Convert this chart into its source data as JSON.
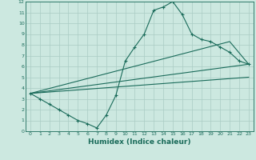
{
  "xlabel": "Humidex (Indice chaleur)",
  "bg_color": "#cce8e0",
  "grid_color": "#aaccC4",
  "line_color": "#1a6b5a",
  "xlim": [
    -0.5,
    23.5
  ],
  "ylim": [
    0,
    12
  ],
  "xticks": [
    0,
    1,
    2,
    3,
    4,
    5,
    6,
    7,
    8,
    9,
    10,
    11,
    12,
    13,
    14,
    15,
    16,
    17,
    18,
    19,
    20,
    21,
    22,
    23
  ],
  "yticks": [
    0,
    1,
    2,
    3,
    4,
    5,
    6,
    7,
    8,
    9,
    10,
    11,
    12
  ],
  "series1_x": [
    0,
    1,
    2,
    3,
    4,
    5,
    6,
    7,
    8,
    9,
    10,
    11,
    12,
    13,
    14,
    15,
    16,
    17,
    18,
    19,
    20,
    21,
    22,
    23
  ],
  "series1_y": [
    3.5,
    3.0,
    2.5,
    2.0,
    1.5,
    1.0,
    0.7,
    0.3,
    1.5,
    3.3,
    6.5,
    7.8,
    9.0,
    11.2,
    11.5,
    12.0,
    10.8,
    9.0,
    8.5,
    8.3,
    7.8,
    7.3,
    6.5,
    6.2
  ],
  "series2_x": [
    0,
    21,
    23
  ],
  "series2_y": [
    3.5,
    8.3,
    6.2
  ],
  "series3_x": [
    0,
    23
  ],
  "series3_y": [
    3.5,
    6.2
  ],
  "series4_x": [
    0,
    23
  ],
  "series4_y": [
    3.5,
    5.0
  ]
}
